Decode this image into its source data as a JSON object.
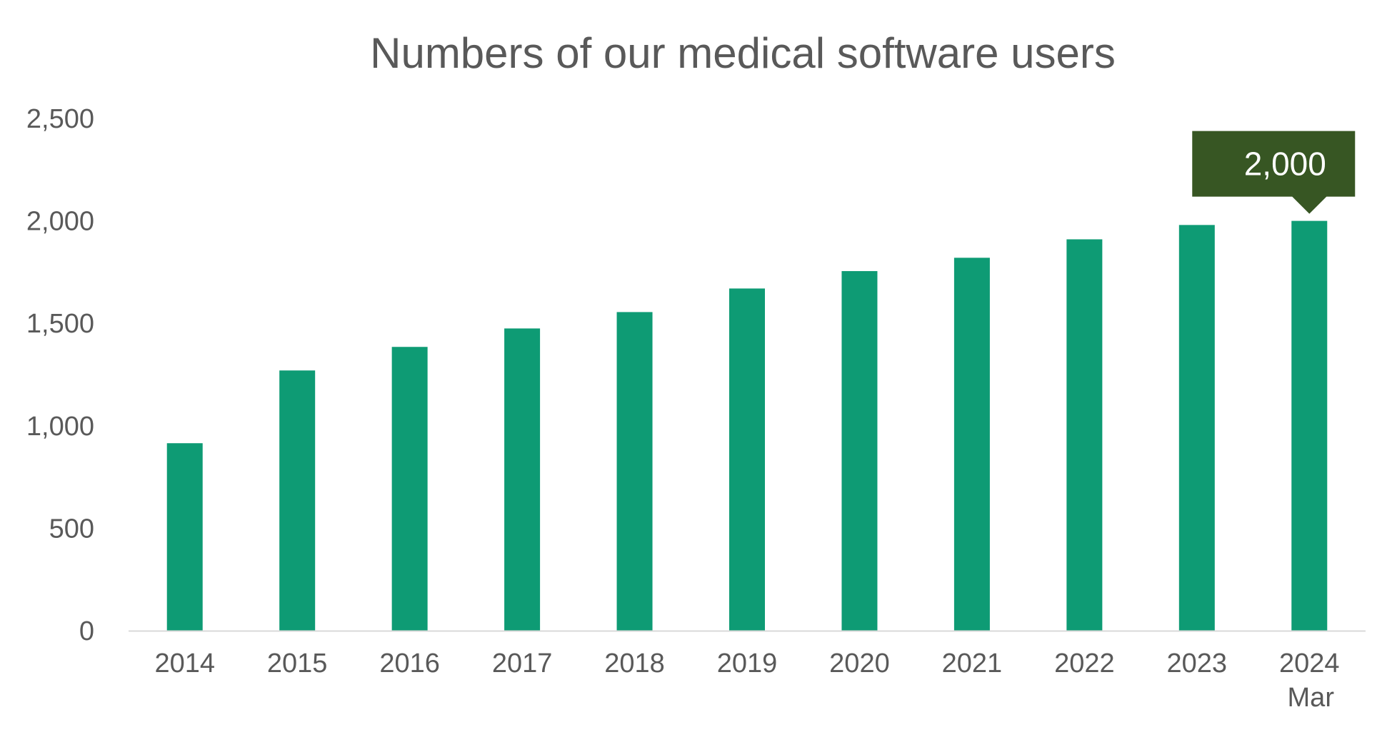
{
  "chart_data": {
    "type": "bar",
    "title": "Numbers of our medical software users",
    "xlabel": "",
    "ylabel": "",
    "categories": [
      "2014",
      "2015",
      "2016",
      "2017",
      "2018",
      "2019",
      "2020",
      "2021",
      "2022",
      "2023",
      "2024"
    ],
    "category_sublabels": [
      "",
      "",
      "",
      "",
      "",
      "",
      "",
      "",
      "",
      "",
      "Mar"
    ],
    "values": [
      915,
      1270,
      1385,
      1475,
      1555,
      1670,
      1755,
      1820,
      1910,
      1980,
      2000
    ],
    "ylim": [
      0,
      2500
    ],
    "yticks": [
      0,
      500,
      1000,
      1500,
      2000,
      2500
    ],
    "ytick_labels": [
      "0",
      "500",
      "1,000",
      "1,500",
      "2,000",
      "2,500"
    ],
    "grid": false,
    "legend": "none",
    "colors": {
      "bar": "#0e9b74",
      "axis": "#d9d9d9",
      "text": "#595959",
      "callout": "#375623"
    },
    "callout": {
      "category_index": 10,
      "label": "2,000"
    }
  }
}
